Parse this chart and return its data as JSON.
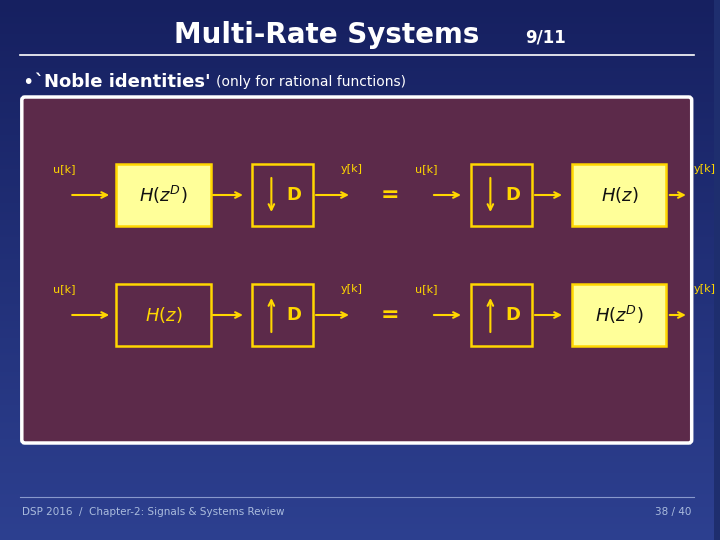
{
  "title": "Multi-Rate Systems",
  "title_suffix": " 9/11",
  "bg_top": "#1B2A6B",
  "bg_bottom": "#2D3A8B",
  "panel_bg": "#5C2A4A",
  "panel_border": "#FFFFFF",
  "box_border": "#FFD700",
  "box_fill_yellow": "#FFFF99",
  "text_color": "#FFFFFF",
  "yellow_text": "#FFD700",
  "footer_left": "DSP 2016  /  Chapter-2: Signals & Systems Review",
  "footer_right": "38 / 40"
}
